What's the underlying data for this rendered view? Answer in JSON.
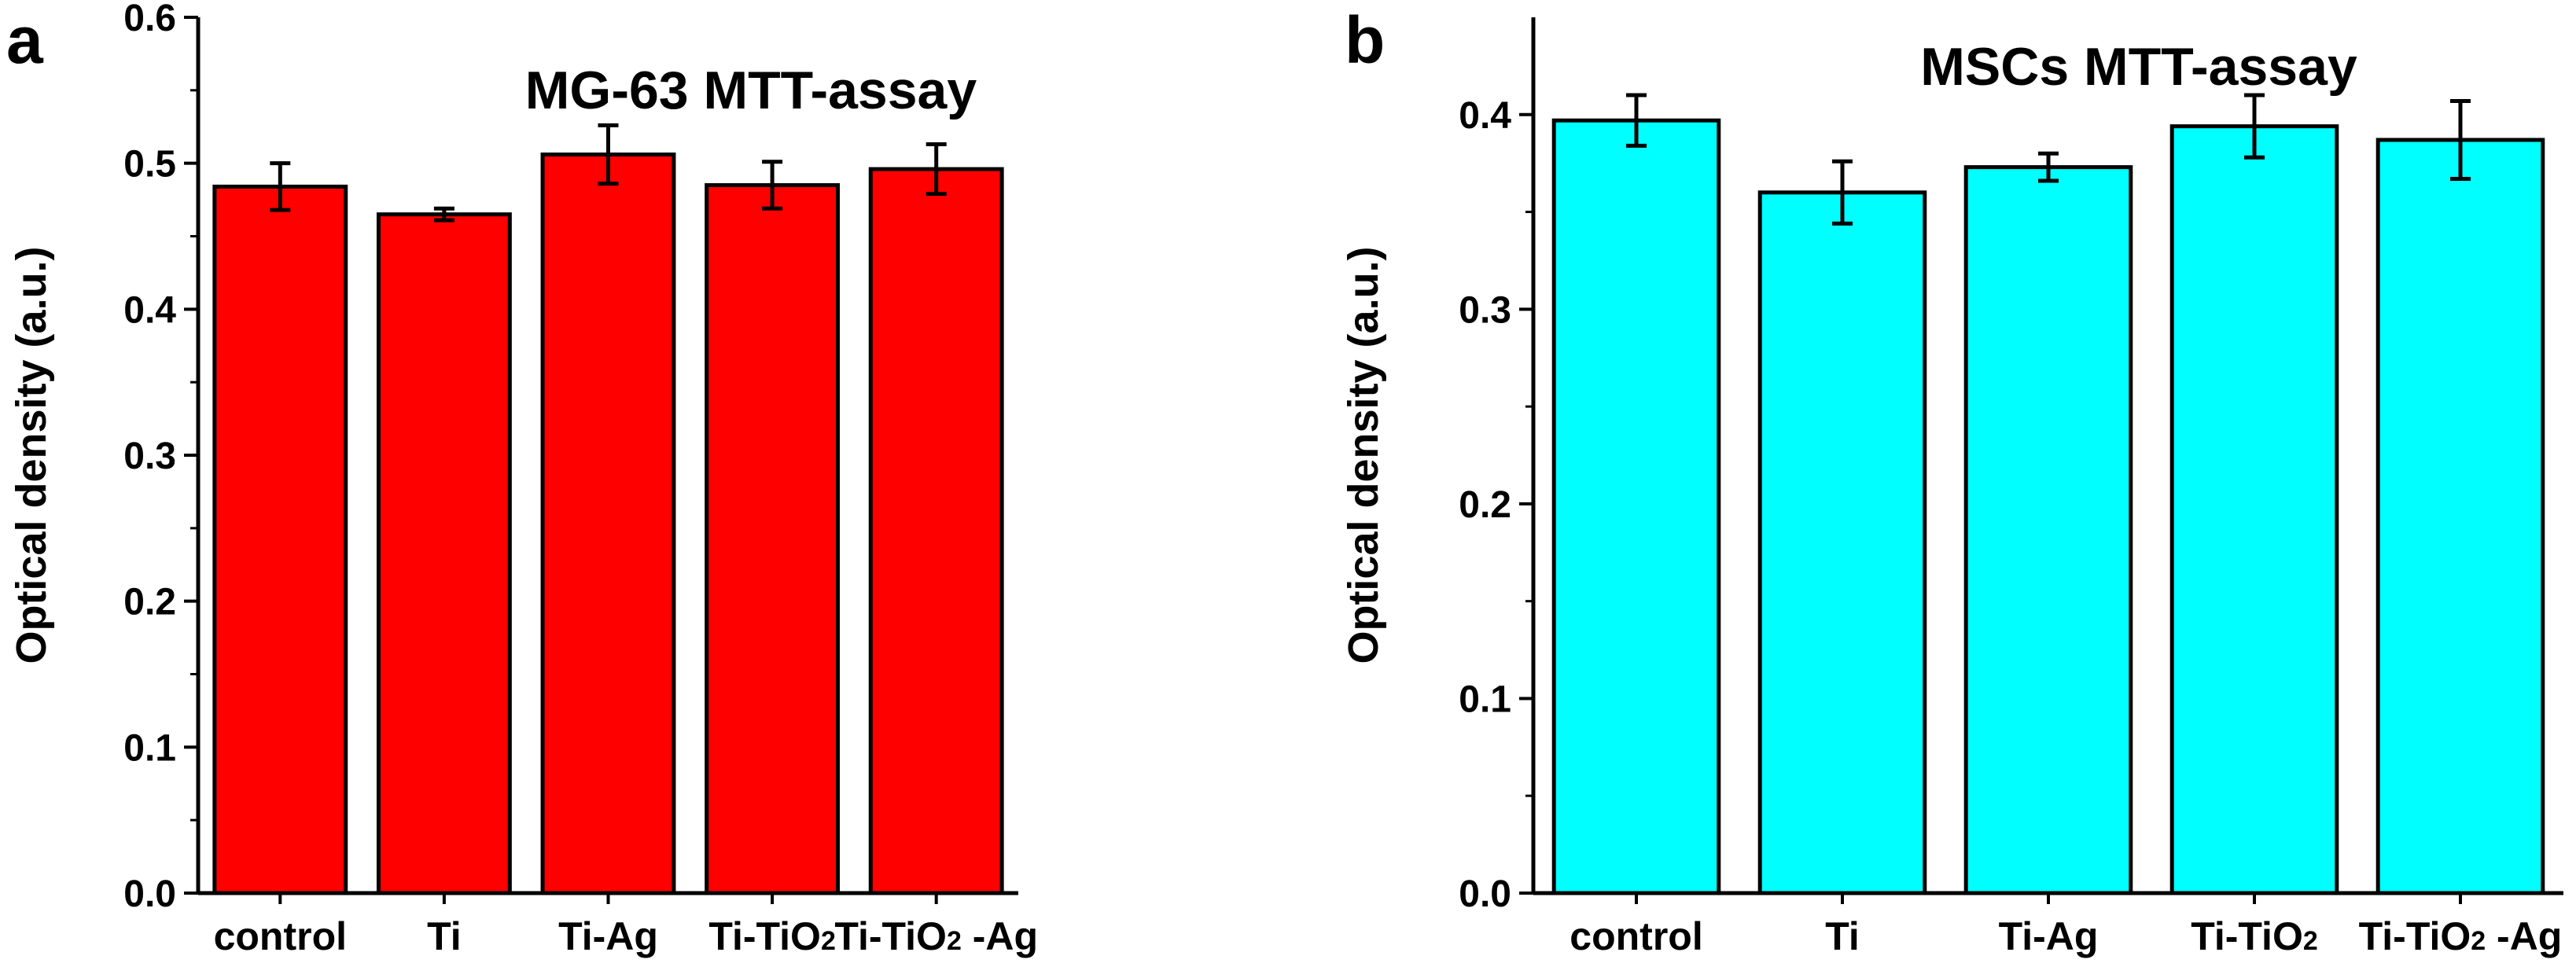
{
  "chart_data": [
    {
      "type": "bar",
      "panel_label": "a",
      "title": "MG-63 MTT-assay",
      "xlabel": "",
      "ylabel": "Optical density (a.u.)",
      "categories": [
        "control",
        "Ti",
        "Ti-Ag",
        "Ti-TiO2",
        "Ti-TiO2 -Ag"
      ],
      "values": [
        0.484,
        0.465,
        0.506,
        0.485,
        0.496
      ],
      "errors": [
        0.016,
        0.004,
        0.02,
        0.016,
        0.017
      ],
      "ylim": [
        0,
        0.6
      ],
      "yticks": [
        0.0,
        0.1,
        0.2,
        0.3,
        0.4,
        0.5,
        0.6
      ],
      "ytick_labels": [
        "0.0",
        "0.1",
        "0.2",
        "0.3",
        "0.4",
        "0.5",
        "0.6"
      ],
      "color": "#ff0000",
      "grid": false,
      "legend": "none"
    },
    {
      "type": "bar",
      "panel_label": "b",
      "title": "MSCs MTT-assay",
      "xlabel": "",
      "ylabel": "Optical density (a.u.)",
      "categories": [
        "control",
        "Ti",
        "Ti-Ag",
        "Ti-TiO2",
        "Ti-TiO2 -Ag"
      ],
      "values": [
        0.397,
        0.36,
        0.373,
        0.394,
        0.387
      ],
      "errors": [
        0.013,
        0.016,
        0.007,
        0.016,
        0.02
      ],
      "ylim": [
        0,
        0.45
      ],
      "yticks": [
        0.0,
        0.1,
        0.2,
        0.3,
        0.4
      ],
      "ytick_labels": [
        "0.0",
        "0.1",
        "0.2",
        "0.3",
        "0.4"
      ],
      "color": "#00ffff",
      "grid": false,
      "legend": "none"
    }
  ]
}
